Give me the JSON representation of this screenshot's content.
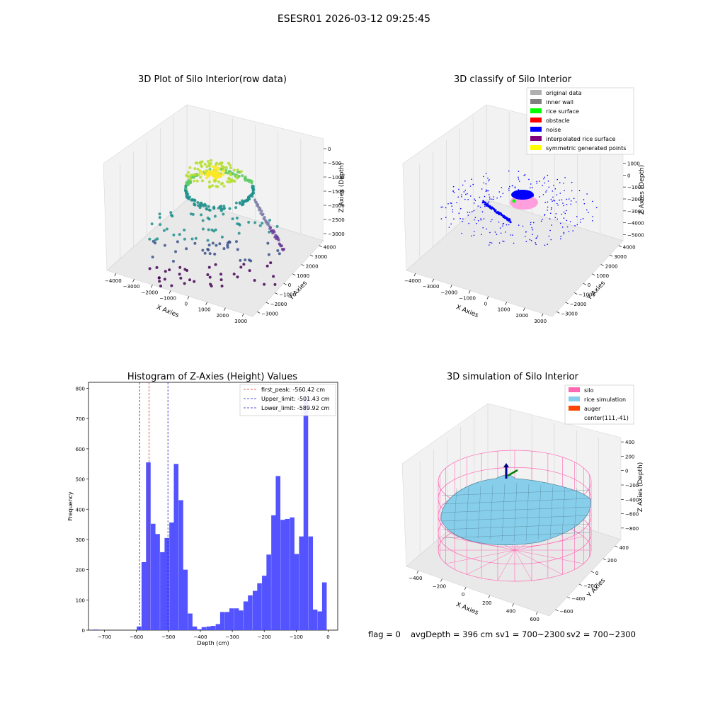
{
  "figure": {
    "suptitle": "ESESR01 2026-03-12 09:25:45",
    "footer": {
      "flag": "flag = 0",
      "avg_depth": "avgDepth = 396 cm",
      "sv1": "sv1 = 700~2300",
      "sv2": "sv2 = 700~2300"
    }
  },
  "colors": {
    "hist_bar": "#4a4aff",
    "first_peak": "#d62728",
    "limit": "#1f1fbf",
    "silo": "#ff69b4",
    "rice_sim": "#87ceeb",
    "auger": "#ff4500"
  },
  "plot1": {
    "title": "3D Plot of Silo Interior(row data)",
    "xlabel": "X Axies",
    "ylabel": "Y Axies",
    "zlabel": "Z Axies (Depth)",
    "xticks": [
      "−4000",
      "−3000",
      "−2000",
      "−1000",
      "0",
      "1000",
      "2000",
      "3000"
    ],
    "yticks": [
      "−3000",
      "−2000",
      "−1000",
      "0",
      "1000",
      "2000",
      "3000",
      "4000"
    ],
    "zticks": [
      "0",
      "−500",
      "−1000",
      "−1500",
      "−2000",
      "−2500",
      "−3000"
    ]
  },
  "plot2": {
    "title": "3D classify of Silo Interior",
    "xlabel": "X Axies",
    "ylabel": "Y Axies",
    "zlabel": "Z Axies (Depth)",
    "xticks": [
      "−4000",
      "−3000",
      "−2000",
      "−1000",
      "0",
      "1000",
      "2000",
      "3000"
    ],
    "yticks": [
      "−3000",
      "−2000",
      "−1000",
      "0",
      "1000",
      "2000",
      "3000",
      "4000"
    ],
    "zticks": [
      "1000",
      "0",
      "−1000",
      "−2000",
      "−3000",
      "−4000",
      "−5000"
    ],
    "legend": [
      {
        "label": "original data",
        "color": "#b0b0b0"
      },
      {
        "label": "inner wall",
        "color": "#808080"
      },
      {
        "label": "rice surface",
        "color": "#00ff00"
      },
      {
        "label": "obstacle",
        "color": "#ff0000"
      },
      {
        "label": "noise",
        "color": "#0000ff"
      },
      {
        "label": "interpolated rice surface",
        "color": "#800080"
      },
      {
        "label": "symmetric generated points",
        "color": "#ffff00"
      }
    ]
  },
  "plot4": {
    "title": "3D simulation of Silo Interior",
    "xlabel": "X Axies",
    "ylabel": "Y Axies",
    "zlabel": "Z Axies (Depth)",
    "xticks": [
      "−400",
      "−200",
      "0",
      "200",
      "400",
      "600"
    ],
    "yticks": [
      "−600",
      "−400",
      "−200",
      "0",
      "200",
      "400"
    ],
    "zticks": [
      "400",
      "200",
      "0",
      "−200",
      "−400",
      "−600",
      "−800"
    ],
    "legend": [
      {
        "label": "silo",
        "color": "#ff69b4"
      },
      {
        "label": "rice simulation",
        "color": "#87ceeb"
      },
      {
        "label": "auger",
        "color": "#ff4500"
      },
      {
        "label": "center(111,-41)",
        "color": ""
      }
    ]
  },
  "chart_data": [
    {
      "type": "bar",
      "title": "Histogram of Z-Axies (Height) Values",
      "xlabel": "Depth (cm)",
      "ylabel": "Frequency",
      "xlim": [
        -750,
        30
      ],
      "ylim": [
        0,
        820
      ],
      "xticks": [
        -700,
        -600,
        -500,
        -400,
        -300,
        -200,
        -100,
        0
      ],
      "xticklabels": [
        "−700",
        "−600",
        "−500",
        "−400",
        "−300",
        "−200",
        "−100",
        "0"
      ],
      "yticks": [
        0,
        100,
        200,
        300,
        400,
        500,
        600,
        700,
        800
      ],
      "bin_width": 14.5,
      "bins": [
        [
          -735,
          2
        ],
        [
          -599,
          12
        ],
        [
          -584,
          225
        ],
        [
          -570,
          555
        ],
        [
          -555,
          352
        ],
        [
          -541,
          318
        ],
        [
          -526,
          258
        ],
        [
          -512,
          305
        ],
        [
          -497,
          356
        ],
        [
          -483,
          550
        ],
        [
          -468,
          430
        ],
        [
          -454,
          200
        ],
        [
          -439,
          55
        ],
        [
          -425,
          12
        ],
        [
          -410,
          3
        ],
        [
          -396,
          10
        ],
        [
          -381,
          12
        ],
        [
          -367,
          14
        ],
        [
          -352,
          20
        ],
        [
          -338,
          60
        ],
        [
          -323,
          60
        ],
        [
          -309,
          72
        ],
        [
          -294,
          72
        ],
        [
          -280,
          65
        ],
        [
          -265,
          95
        ],
        [
          -251,
          115
        ],
        [
          -236,
          130
        ],
        [
          -222,
          155
        ],
        [
          -207,
          180
        ],
        [
          -193,
          250
        ],
        [
          -178,
          380
        ],
        [
          -164,
          510
        ],
        [
          -149,
          365
        ],
        [
          -135,
          368
        ],
        [
          -120,
          373
        ],
        [
          -106,
          252
        ],
        [
          -91,
          310
        ],
        [
          -77,
          770
        ],
        [
          -62,
          310
        ],
        [
          -48,
          68
        ],
        [
          -33,
          62
        ],
        [
          -19,
          158
        ]
      ],
      "lines": [
        {
          "label": "first_peak: -560.42 cm",
          "x": -560.42,
          "style": "red-dashed"
        },
        {
          "label": "Upper_limit: -501.43 cm",
          "x": -501.43,
          "style": "blue-dashed"
        },
        {
          "label": "Lower_limit: -589.92 cm",
          "x": -589.92,
          "style": "blue-dashed"
        }
      ],
      "legend_position": "upper right"
    }
  ]
}
